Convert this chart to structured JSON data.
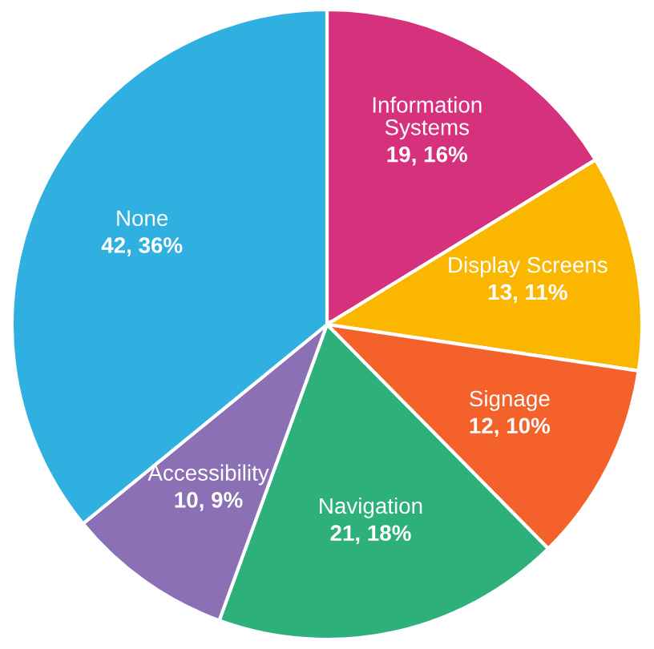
{
  "chart_data": {
    "type": "pie",
    "categories": [
      "Information\nSystems",
      "Display Screens",
      "Signage",
      "Navigation",
      "Accessibility",
      "None"
    ],
    "values": [
      19,
      13,
      12,
      21,
      10,
      42
    ],
    "value_labels": [
      "19, 16%",
      "13, 11%",
      "12, 10%",
      "21, 18%",
      "10, 9%",
      "42, 36%"
    ],
    "colors": [
      "#d6317d",
      "#fbb700",
      "#f4612b",
      "#2eb07b",
      "#8b70b6",
      "#30b0e0"
    ],
    "legend": false
  }
}
